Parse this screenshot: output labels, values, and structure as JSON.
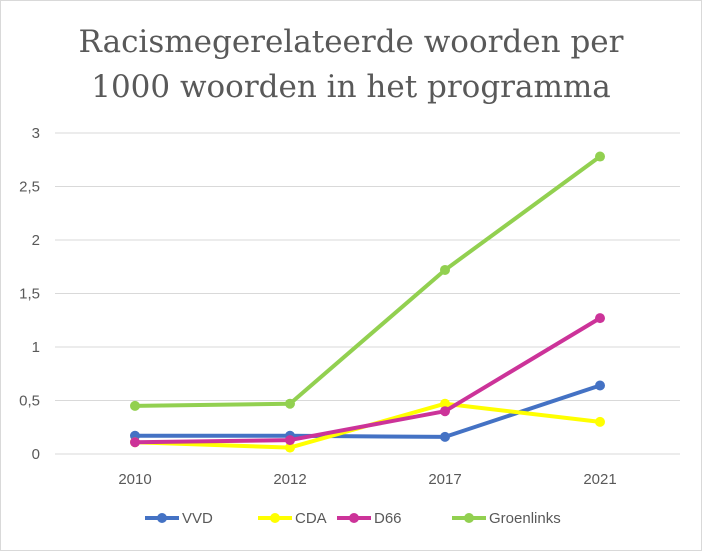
{
  "chart_data": {
    "type": "line",
    "title_lines": [
      "Racismegerelateerde  woorden per",
      "1000 woorden  in het programma"
    ],
    "categories": [
      "2010",
      "2012",
      "2017",
      "2021"
    ],
    "y_ticks": [
      "0",
      "0,5",
      "1",
      "1,5",
      "2",
      "2,5",
      "3"
    ],
    "ylim": [
      0,
      3
    ],
    "grid": true,
    "legend_position": "bottom",
    "series": [
      {
        "name": "VVD",
        "color": "#4472C4",
        "values": [
          0.17,
          0.17,
          0.16,
          0.64
        ]
      },
      {
        "name": "CDA",
        "color": "#FFFF00",
        "values": [
          0.11,
          0.06,
          0.47,
          0.3
        ]
      },
      {
        "name": "D66",
        "color": "#CC3399",
        "values": [
          0.11,
          0.13,
          0.4,
          1.27
        ]
      },
      {
        "name": "Groenlinks",
        "color": "#92D050",
        "values": [
          0.45,
          0.47,
          1.72,
          2.78
        ]
      }
    ]
  }
}
